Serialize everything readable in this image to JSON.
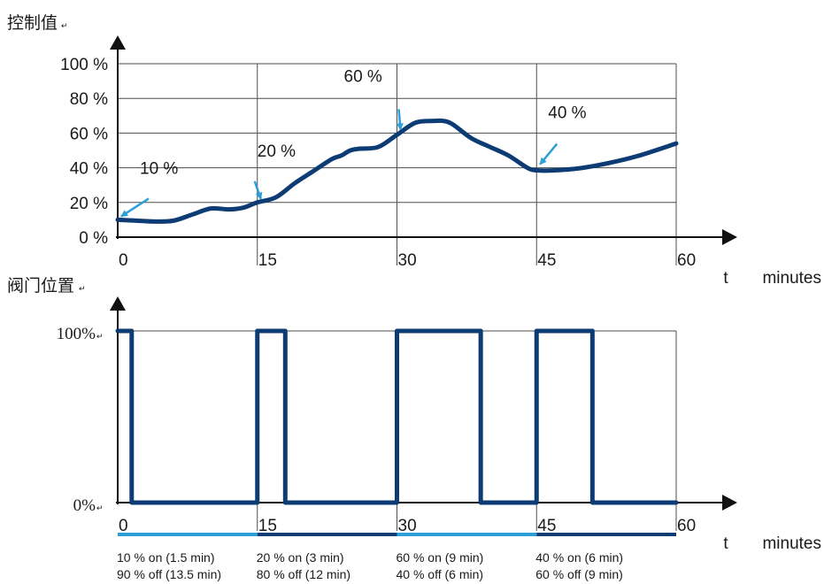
{
  "chart_data": [
    {
      "type": "line",
      "ylabel": "控制值",
      "xlabel_t": "t",
      "xlabel_unit": "minutes",
      "x_ticks": [
        "0",
        "15",
        "30",
        "45",
        "60"
      ],
      "y_ticks": [
        "0 %",
        "20 %",
        "40 %",
        "60 %",
        "80 %",
        "100 %"
      ],
      "xlim": [
        0,
        60
      ],
      "ylim": [
        0,
        100
      ],
      "grid": true,
      "line_color": "#0d3b73",
      "series": [
        {
          "x": [
            0,
            2,
            4,
            6,
            8,
            10,
            12,
            13.5,
            15,
            17,
            19,
            21,
            23,
            24,
            25,
            26,
            28,
            30,
            32,
            34,
            35,
            36,
            38,
            40,
            42,
            44,
            45,
            47,
            50,
            53,
            56,
            60
          ],
          "y": [
            10,
            9.5,
            9,
            9.5,
            13,
            16.5,
            16,
            17,
            20,
            23,
            31,
            38,
            45,
            47,
            50,
            51,
            52,
            59,
            66,
            67,
            67,
            65,
            57,
            52,
            47,
            40,
            38.5,
            38.5,
            40,
            43,
            47,
            54
          ]
        }
      ],
      "annotations": [
        {
          "text": "10 %",
          "x": 0,
          "y": 10
        },
        {
          "text": "20 %",
          "x": 15,
          "y": 20
        },
        {
          "text": "60 %",
          "x": 30,
          "y": 60
        },
        {
          "text": "40 %",
          "x": 45,
          "y": 40
        }
      ],
      "annotation_color": "#2a9fd8"
    },
    {
      "type": "line",
      "ylabel": "阀门位置",
      "xlabel_t": "t",
      "xlabel_unit": "minutes",
      "x_ticks": [
        "0",
        "15",
        "30",
        "45",
        "60"
      ],
      "y_ticks": [
        "0%",
        "100%"
      ],
      "xlim": [
        0,
        60
      ],
      "ylim": [
        0,
        100
      ],
      "grid": true,
      "line_color": "#0d3b73",
      "series": [
        {
          "x": [
            0,
            1.5,
            1.5,
            15,
            15,
            18,
            18,
            30,
            30,
            39,
            39,
            45,
            45,
            51,
            51,
            60
          ],
          "y": [
            100,
            100,
            0,
            0,
            100,
            100,
            0,
            0,
            100,
            100,
            0,
            0,
            100,
            100,
            0,
            0
          ]
        }
      ],
      "period_bar_colors": [
        "#2a9fd8",
        "#0d3b73",
        "#2a9fd8",
        "#0d3b73"
      ],
      "periods": [
        {
          "on": "10 % on (1.5 min)",
          "off": "90 % off (13.5 min)"
        },
        {
          "on": "20 % on (3 min)",
          "off": "80 % off (12 min)"
        },
        {
          "on": "60 % on (9 min)",
          "off": "40 % off (6 min)"
        },
        {
          "on": "40 % on (6 min)",
          "off": "60 % off (9 min)"
        }
      ]
    }
  ]
}
